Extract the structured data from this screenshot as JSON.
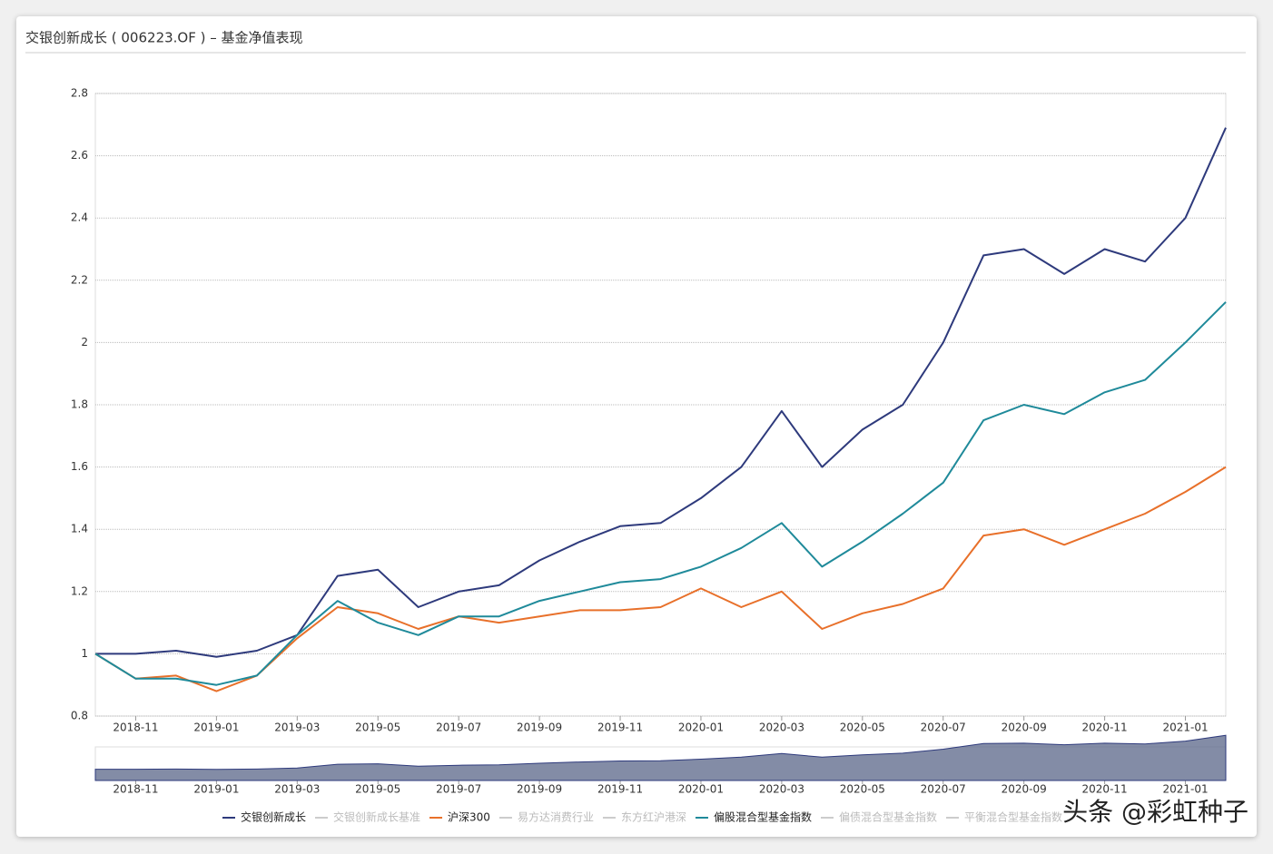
{
  "header": {
    "title": "交银创新成长 ( 006223.OF ) – 基金净值表现"
  },
  "watermark": "头条 @彩虹种子",
  "chart_data": {
    "type": "line",
    "x": [
      "2018-10",
      "2018-11",
      "2018-12",
      "2019-01",
      "2019-02",
      "2019-03",
      "2019-04",
      "2019-05",
      "2019-06",
      "2019-07",
      "2019-08",
      "2019-09",
      "2019-10",
      "2019-11",
      "2019-12",
      "2020-01",
      "2020-02",
      "2020-03",
      "2020-04",
      "2020-05",
      "2020-06",
      "2020-07",
      "2020-08",
      "2020-09",
      "2020-10",
      "2020-11",
      "2020-12",
      "2021-01",
      "2021-02"
    ],
    "xlim": [
      "2018-10",
      "2021-02"
    ],
    "xticks": [
      "2018-11",
      "2019-01",
      "2019-03",
      "2019-05",
      "2019-07",
      "2019-09",
      "2019-11",
      "2020-01",
      "2020-03",
      "2020-05",
      "2020-07",
      "2020-09",
      "2020-11",
      "2021-01"
    ],
    "ylim": [
      0.8,
      2.8
    ],
    "yticks": [
      0.8,
      1,
      1.2,
      1.4,
      1.6,
      1.8,
      2,
      2.2,
      2.4,
      2.6,
      2.8
    ],
    "grid": true,
    "legend": "bottom",
    "series": [
      {
        "name": "交银创新成长",
        "color": "#2e3a7c",
        "values": [
          1.0,
          1.0,
          1.01,
          0.99,
          1.01,
          1.06,
          1.25,
          1.27,
          1.15,
          1.2,
          1.22,
          1.3,
          1.36,
          1.41,
          1.42,
          1.5,
          1.6,
          1.78,
          1.6,
          1.72,
          1.8,
          2.0,
          2.28,
          2.3,
          2.22,
          2.3,
          2.26,
          2.4,
          2.69
        ]
      },
      {
        "name": "交银创新成长基准",
        "color": "#cccccc",
        "visible": false
      },
      {
        "name": "沪深300",
        "color": "#e8702a",
        "values": [
          1.0,
          0.92,
          0.93,
          0.88,
          0.93,
          1.05,
          1.15,
          1.13,
          1.08,
          1.12,
          1.1,
          1.12,
          1.14,
          1.14,
          1.15,
          1.21,
          1.15,
          1.2,
          1.08,
          1.13,
          1.16,
          1.21,
          1.38,
          1.4,
          1.35,
          1.4,
          1.45,
          1.52,
          1.6
        ]
      },
      {
        "name": "易方达消费行业",
        "color": "#cccccc",
        "visible": false
      },
      {
        "name": "东方红沪港深",
        "color": "#cccccc",
        "visible": false
      },
      {
        "name": "偏股混合型基金指数",
        "color": "#1f8a9a",
        "values": [
          1.0,
          0.92,
          0.92,
          0.9,
          0.93,
          1.06,
          1.17,
          1.1,
          1.06,
          1.12,
          1.12,
          1.17,
          1.2,
          1.23,
          1.24,
          1.28,
          1.34,
          1.42,
          1.28,
          1.36,
          1.45,
          1.55,
          1.75,
          1.8,
          1.77,
          1.84,
          1.88,
          2.0,
          2.13
        ]
      },
      {
        "name": "偏债混合型基金指数",
        "color": "#cccccc",
        "visible": false
      },
      {
        "name": "平衡混合型基金指数",
        "color": "#cccccc",
        "visible": false
      }
    ]
  }
}
